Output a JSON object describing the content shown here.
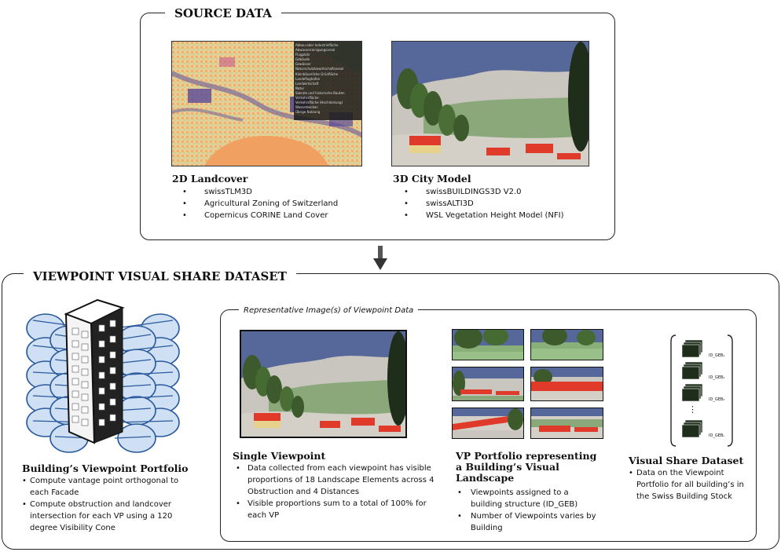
{
  "source_data": {
    "title": "SOURCE DATA",
    "landcover": {
      "title": "2D Landcover",
      "items": [
        "swissTLM3D",
        "Agricultural Zoning of Switzerland",
        "Copernicus CORINE Land Cover"
      ],
      "legend": [
        "Abbau-oder Industriefläche",
        "Abwasserreinigungsareal",
        "Flugplatz",
        "Gebäude",
        "Gewässer",
        "Naturschutzbewirtschaftsareal",
        "Kleinbäuerliche Grünfläche",
        "Landeflughafen",
        "Landwirtschaft",
        "Natur",
        "Sakrale und historische Bauten",
        "Verkehrsfläche",
        "Verkehrsfläche (Hochleistung)",
        "Wasserbecken",
        "Übrige Nutzung"
      ]
    },
    "city_model": {
      "title": "3D City Model",
      "items": [
        "swissBUILDINGS3D V2.0",
        "swissALTI3D",
        "WSL Vegetation Height Model (NFI)"
      ]
    }
  },
  "dataset": {
    "title": "VIEWPOINT VISUAL SHARE DATASET",
    "representative_label": "Representative Image(s) of Viewpoint Data",
    "portfolio": {
      "title": "Building’s Viewpoint Portfolio",
      "items": [
        "Compute vantage point orthogonal to each Facade",
        "Compute obstruction and landcover intersection for each VP using a 120 degree Visibility Cone"
      ]
    },
    "single_viewpoint": {
      "title": "Single Viewpoint",
      "items": [
        "Data collected from each viewpoint has visible proportions of 18 Landscape Elements across 4 Obstruction and 4 Distances",
        "Visible proportions sum to a total of 100% for each VP"
      ]
    },
    "vp_portfolio": {
      "title": "VP Portfolio representing a Building’s Visual Landscape",
      "items": [
        "Viewpoints assigned to a building structure (ID_GEB)",
        "Number of Viewpoints varies by Building"
      ]
    },
    "visual_share": {
      "title": "Visual Share Dataset",
      "items": [
        "Data on the Viewpoint Portfolio for all building’s in the Swiss Building Stock"
      ],
      "stack_labels": [
        "ID_GEB₁",
        "ID_GEB₂",
        "ID_GEB₃",
        "ID_GEBₙ"
      ],
      "ellipsis": "⋮"
    }
  },
  "icons": {
    "arrow": "down-arrow-icon",
    "bullet": "•"
  },
  "colors": {
    "sky": "#5a6a9a",
    "roof": "#e03a2a",
    "tree": "#3c5a2c",
    "cone_fill": "#cfe0f4",
    "cone_stroke": "#2a5a9c"
  }
}
